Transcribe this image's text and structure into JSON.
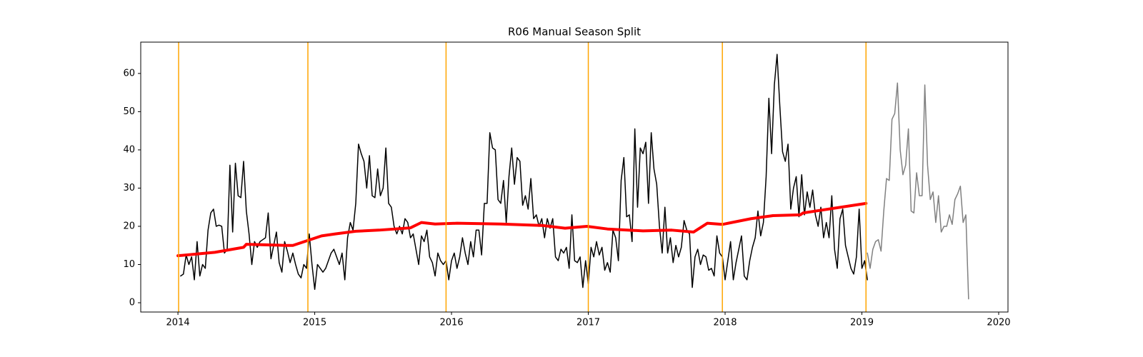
{
  "chart_data": {
    "type": "line",
    "title": "R06 Manual Season Split",
    "xlim": [
      2013.728,
      2020.068
    ],
    "xticks": [
      2014,
      2015,
      2016,
      2017,
      2018,
      2019,
      2020
    ],
    "ylim": [
      -2.43,
      68.2
    ],
    "yticks": [
      0,
      10,
      20,
      30,
      40,
      50,
      60
    ],
    "grid": false,
    "series": [
      {
        "color": "#000000",
        "width": 1.5,
        "x": [
          2014.02,
          2014.04,
          2014.06,
          2014.08,
          2014.1,
          2014.12,
          2014.14,
          2014.16,
          2014.18,
          2014.2,
          2014.22,
          2014.24,
          2014.26,
          2014.28,
          2014.3,
          2014.32,
          2014.34,
          2014.36,
          2014.38,
          2014.4,
          2014.42,
          2014.44,
          2014.46,
          2014.48,
          2014.5,
          2014.52,
          2014.54,
          2014.56,
          2014.58,
          2014.6,
          2014.62,
          2014.64,
          2014.66,
          2014.68,
          2014.7,
          2014.72,
          2014.74,
          2014.76,
          2014.78,
          2014.8,
          2014.82,
          2014.84,
          2014.86,
          2014.88,
          2014.9,
          2014.92,
          2014.94,
          2014.96,
          2014.98,
          2015.0,
          2015.02,
          2015.04,
          2015.06,
          2015.08,
          2015.1,
          2015.12,
          2015.14,
          2015.16,
          2015.18,
          2015.2,
          2015.22,
          2015.24,
          2015.26,
          2015.28,
          2015.3,
          2015.32,
          2015.34,
          2015.36,
          2015.38,
          2015.4,
          2015.42,
          2015.44,
          2015.46,
          2015.48,
          2015.5,
          2015.52,
          2015.54,
          2015.56,
          2015.58,
          2015.6,
          2015.62,
          2015.64,
          2015.66,
          2015.68,
          2015.7,
          2015.72,
          2015.74,
          2015.76,
          2015.78,
          2015.8,
          2015.82,
          2015.84,
          2015.86,
          2015.88,
          2015.9,
          2015.92,
          2015.94,
          2015.96,
          2015.98,
          2016.0,
          2016.02,
          2016.04,
          2016.06,
          2016.08,
          2016.1,
          2016.12,
          2016.14,
          2016.16,
          2016.18,
          2016.2,
          2016.22,
          2016.24,
          2016.26,
          2016.28,
          2016.3,
          2016.32,
          2016.34,
          2016.36,
          2016.38,
          2016.4,
          2016.42,
          2016.44,
          2016.46,
          2016.48,
          2016.5,
          2016.52,
          2016.54,
          2016.56,
          2016.58,
          2016.6,
          2016.62,
          2016.64,
          2016.66,
          2016.68,
          2016.7,
          2016.72,
          2016.74,
          2016.76,
          2016.78,
          2016.8,
          2016.82,
          2016.84,
          2016.86,
          2016.88,
          2016.9,
          2016.92,
          2016.94,
          2016.96,
          2016.98,
          2017.0,
          2017.02,
          2017.04,
          2017.06,
          2017.08,
          2017.1,
          2017.12,
          2017.14,
          2017.16,
          2017.18,
          2017.2,
          2017.22,
          2017.24,
          2017.26,
          2017.28,
          2017.3,
          2017.32,
          2017.34,
          2017.36,
          2017.38,
          2017.4,
          2017.42,
          2017.44,
          2017.46,
          2017.48,
          2017.5,
          2017.52,
          2017.54,
          2017.56,
          2017.58,
          2017.6,
          2017.62,
          2017.64,
          2017.66,
          2017.68,
          2017.7,
          2017.72,
          2017.74,
          2017.76,
          2017.78,
          2017.8,
          2017.82,
          2017.84,
          2017.86,
          2017.88,
          2017.9,
          2017.92,
          2017.94,
          2017.96,
          2017.98,
          2018.0,
          2018.02,
          2018.04,
          2018.06,
          2018.08,
          2018.1,
          2018.12,
          2018.14,
          2018.16,
          2018.18,
          2018.2,
          2018.22,
          2018.24,
          2018.26,
          2018.28,
          2018.3,
          2018.32,
          2018.34,
          2018.36,
          2018.38,
          2018.4,
          2018.42,
          2018.44,
          2018.46,
          2018.48,
          2018.5,
          2018.52,
          2018.54,
          2018.56,
          2018.58,
          2018.6,
          2018.62,
          2018.64,
          2018.66,
          2018.68,
          2018.7,
          2018.72,
          2018.74,
          2018.76,
          2018.78,
          2018.8,
          2018.82,
          2018.84,
          2018.86,
          2018.88,
          2018.9,
          2018.92,
          2018.94,
          2018.96,
          2018.98,
          2019.0,
          2019.02,
          2019.04
        ],
        "values": [
          7,
          7.5,
          12.5,
          10,
          12,
          6,
          16,
          7,
          10,
          9,
          19,
          23.5,
          24.5,
          20,
          20.3,
          20,
          13,
          14,
          36,
          18.5,
          36.5,
          28,
          27.5,
          37,
          24,
          18,
          10,
          16,
          14.5,
          16,
          16.5,
          17,
          23.5,
          11.5,
          15,
          18.5,
          10.5,
          8,
          16,
          13.5,
          10.5,
          13,
          10,
          7.5,
          6.5,
          10,
          9,
          18,
          10,
          3.5,
          10,
          9,
          8,
          9,
          11,
          13,
          14,
          12,
          10,
          13,
          6,
          17,
          21,
          19,
          26,
          41.5,
          39,
          37,
          30,
          38.5,
          28,
          27.5,
          35,
          28,
          30,
          40.5,
          26,
          25,
          20,
          18,
          20,
          18,
          22,
          21,
          17,
          18,
          14,
          10,
          17.5,
          16,
          19,
          12,
          10.5,
          7,
          13,
          11,
          10,
          11,
          6,
          11,
          13,
          9,
          12,
          17,
          13,
          10,
          16,
          12,
          19,
          19,
          12.5,
          26,
          26,
          44.5,
          40.5,
          40,
          27,
          26,
          32,
          21,
          33,
          40.5,
          31,
          38,
          37,
          25.5,
          28,
          24.5,
          32.5,
          22,
          23,
          20,
          22,
          17,
          22,
          19.5,
          22,
          12,
          11,
          14,
          13,
          14.5,
          9,
          23,
          11,
          10.5,
          12,
          4,
          11,
          5,
          14.5,
          12,
          16,
          12.5,
          14.5,
          8.5,
          10.5,
          8,
          19,
          17,
          11,
          32,
          38,
          22.5,
          23,
          16,
          45.5,
          25,
          40.5,
          39,
          42,
          26,
          44.5,
          35,
          31,
          20,
          13,
          25,
          13,
          17,
          10.5,
          15,
          12,
          14.5,
          21.5,
          19,
          18,
          4,
          12,
          14,
          10,
          12.5,
          12,
          8.5,
          9,
          7,
          17.5,
          13,
          12,
          6,
          11,
          16,
          6,
          10.5,
          14,
          17.5,
          7,
          6,
          11,
          14.5,
          17,
          24,
          17.5,
          21,
          33,
          53.5,
          39,
          57,
          65,
          51.5,
          39.5,
          37,
          41.5,
          24.5,
          30,
          33,
          22.5,
          33.5,
          23,
          29,
          25,
          29.5,
          23,
          20,
          25,
          17,
          21,
          17,
          28,
          14,
          9,
          22,
          24.5,
          15,
          12,
          9,
          7.5,
          12,
          24.5,
          9,
          11,
          6
        ]
      },
      {
        "color": "#808080",
        "width": 1.5,
        "x": [
          2019.04,
          2019.06,
          2019.08,
          2019.1,
          2019.12,
          2019.14,
          2019.16,
          2019.18,
          2019.2,
          2019.22,
          2019.24,
          2019.26,
          2019.28,
          2019.3,
          2019.32,
          2019.34,
          2019.36,
          2019.38,
          2019.4,
          2019.42,
          2019.44,
          2019.46,
          2019.48,
          2019.5,
          2019.52,
          2019.54,
          2019.56,
          2019.58,
          2019.6,
          2019.62,
          2019.64,
          2019.66,
          2019.68,
          2019.7,
          2019.72,
          2019.74,
          2019.76,
          2019.78
        ],
        "values": [
          13,
          9,
          14,
          16,
          16.5,
          13.5,
          24,
          32.5,
          32,
          48,
          49.5,
          57.5,
          40,
          33.5,
          36,
          45.5,
          24,
          23.5,
          34,
          28,
          28,
          57,
          36,
          27,
          29,
          21,
          28,
          18.5,
          20,
          20,
          23,
          20.5,
          27,
          28.5,
          30.5,
          21,
          23,
          1
        ]
      },
      {
        "color": "#ff0000",
        "width": 4,
        "x": [
          2014.0,
          2014.27,
          2014.48,
          2014.5,
          2014.79,
          2014.84,
          2014.95,
          2015.05,
          2015.15,
          2015.3,
          2015.47,
          2015.7,
          2015.78,
          2015.88,
          2016.04,
          2016.36,
          2016.67,
          2016.83,
          2016.99,
          2017.14,
          2017.4,
          2017.61,
          2017.77,
          2017.87,
          2017.98,
          2018.19,
          2018.35,
          2018.55,
          2018.57,
          2019.03
        ],
        "values": [
          12.3,
          13.2,
          14.5,
          15.3,
          15,
          15,
          16.3,
          17.5,
          18,
          18.7,
          19,
          19.6,
          21,
          20.6,
          20.8,
          20.6,
          20.2,
          19.5,
          20,
          19.3,
          18.8,
          19,
          18.5,
          20.8,
          20.5,
          22,
          22.8,
          23,
          23.5,
          26
        ]
      }
    ],
    "vlines": {
      "color": "#ffa500",
      "x": [
        2014.005,
        2014.95,
        2015.96,
        2017.0,
        2017.98,
        2019.03
      ]
    }
  }
}
